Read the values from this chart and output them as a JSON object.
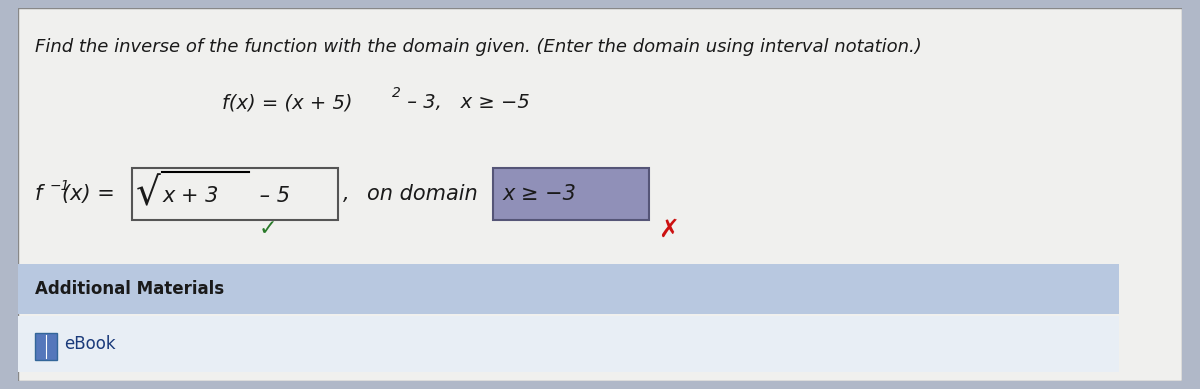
{
  "bg_outer": "#b0b8c8",
  "bg_panel": "#f0f0ee",
  "bg_additional": "#b8c8e0",
  "bg_ebook": "#e8eef5",
  "text_dark": "#1a1a1a",
  "text_blue": "#1a3a7a",
  "inv_box_bg": "#f0f0ee",
  "inv_box_edge": "#555555",
  "dom_box_bg": "#9090b8",
  "dom_box_edge": "#555577",
  "check_color": "#2a7a2a",
  "x_color": "#cc1111",
  "title": "Find the inverse of the function with the domain given. (Enter the domain using interval notation.)",
  "func_part1": "f(x) = (x + 5)",
  "func_super": "2",
  "func_part2": " – 3,   x ≥ −5",
  "inv_label": "f ",
  "inv_exp": "−1",
  "inv_label2": "(x) = ",
  "sqrt_sym": "√",
  "inv_arg": "x + 3",
  "inv_tail": " – 5",
  "comma_domain": ",",
  "on_domain": "on domain",
  "dom_expr": "x ≥ −3",
  "check": "✓",
  "xmark": "✗",
  "add_mat": "Additional Materials",
  "ebook": "eBook",
  "title_fs": 13,
  "func_fs": 14,
  "inv_fs": 15
}
